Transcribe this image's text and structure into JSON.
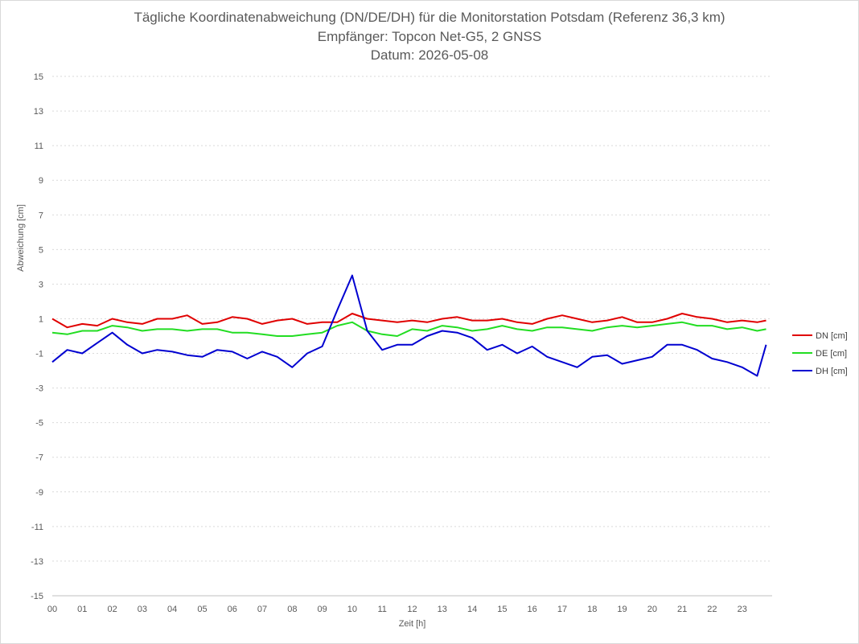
{
  "chart": {
    "title_lines": [
      "Tägliche Koordinatenabweichung (DN/DE/DH) für die Monitorstation Potsdam (Referenz 36,3 km)",
      "Empfänger: Topcon Net-G5, 2 GNSS",
      "Datum: 2026-05-08"
    ]
  },
  "chart_data": {
    "type": "line",
    "title": "Tägliche Koordinatenabweichung (DN/DE/DH) für die Monitorstation Potsdam (Referenz 36,3 km)",
    "subtitle": "Empfänger: Topcon Net-G5, 2 GNSS",
    "date": "Datum: 2026-05-08",
    "xlabel": "Zeit [h]",
    "ylabel": "Abweichung [cm]",
    "xlim": [
      0,
      24
    ],
    "ylim": [
      -15,
      15
    ],
    "x_ticks": [
      "00",
      "01",
      "02",
      "03",
      "04",
      "05",
      "06",
      "07",
      "08",
      "09",
      "10",
      "11",
      "12",
      "13",
      "14",
      "15",
      "16",
      "17",
      "18",
      "19",
      "20",
      "21",
      "22",
      "23"
    ],
    "y_ticks": [
      15,
      13,
      11,
      9,
      7,
      5,
      3,
      1,
      -1,
      -3,
      -5,
      -7,
      -9,
      -11,
      -13,
      -15
    ],
    "y_tick_labels": [
      "15",
      "13",
      "11",
      "9",
      "7",
      "5",
      "3",
      "1",
      "-1",
      "-3",
      "-5",
      "-7",
      "-9",
      "-11",
      "-13",
      "-15"
    ],
    "grid": "horizontal dotted",
    "legend": "right",
    "x": [
      0.0,
      0.5,
      1.0,
      1.5,
      2.0,
      2.5,
      3.0,
      3.5,
      4.0,
      4.5,
      5.0,
      5.5,
      6.0,
      6.5,
      7.0,
      7.5,
      8.0,
      8.5,
      9.0,
      9.5,
      10.0,
      10.5,
      11.0,
      11.5,
      12.0,
      12.5,
      13.0,
      13.5,
      14.0,
      14.5,
      15.0,
      15.5,
      16.0,
      16.5,
      17.0,
      17.5,
      18.0,
      18.5,
      19.0,
      19.5,
      20.0,
      20.5,
      21.0,
      21.5,
      22.0,
      22.5,
      23.0,
      23.5,
      23.8
    ],
    "series": [
      {
        "name": "DN [cm]",
        "color": "#e00000",
        "values": [
          1.0,
          0.5,
          0.7,
          0.6,
          1.0,
          0.8,
          0.7,
          1.0,
          1.0,
          1.2,
          0.7,
          0.8,
          1.1,
          1.0,
          0.7,
          0.9,
          1.0,
          0.7,
          0.8,
          0.8,
          1.3,
          1.0,
          0.9,
          0.8,
          0.9,
          0.8,
          1.0,
          1.1,
          0.9,
          0.9,
          1.0,
          0.8,
          0.7,
          1.0,
          1.2,
          1.0,
          0.8,
          0.9,
          1.1,
          0.8,
          0.8,
          1.0,
          1.3,
          1.1,
          1.0,
          0.8,
          0.9,
          0.8,
          0.9
        ]
      },
      {
        "name": "DE [cm]",
        "color": "#22dd22",
        "values": [
          0.2,
          0.1,
          0.3,
          0.3,
          0.6,
          0.5,
          0.3,
          0.4,
          0.4,
          0.3,
          0.4,
          0.4,
          0.2,
          0.2,
          0.1,
          0.0,
          0.0,
          0.1,
          0.2,
          0.6,
          0.8,
          0.3,
          0.1,
          0.0,
          0.4,
          0.3,
          0.6,
          0.5,
          0.3,
          0.4,
          0.6,
          0.4,
          0.3,
          0.5,
          0.5,
          0.4,
          0.3,
          0.5,
          0.6,
          0.5,
          0.6,
          0.7,
          0.8,
          0.6,
          0.6,
          0.4,
          0.5,
          0.3,
          0.4
        ]
      },
      {
        "name": "DH [cm]",
        "color": "#0000d0",
        "values": [
          -1.5,
          -0.8,
          -1.0,
          -0.4,
          0.2,
          -0.5,
          -1.0,
          -0.8,
          -0.9,
          -1.1,
          -1.2,
          -0.8,
          -0.9,
          -1.3,
          -0.9,
          -1.2,
          -1.8,
          -1.0,
          -0.6,
          1.5,
          3.5,
          0.3,
          -0.8,
          -0.5,
          -0.5,
          0.0,
          0.3,
          0.2,
          -0.1,
          -0.8,
          -0.5,
          -1.0,
          -0.6,
          -1.2,
          -1.5,
          -1.8,
          -1.2,
          -1.1,
          -1.6,
          -1.4,
          -1.2,
          -0.5,
          -0.5,
          -0.8,
          -1.3,
          -1.5,
          -1.8,
          -2.3,
          -0.5
        ]
      }
    ]
  }
}
